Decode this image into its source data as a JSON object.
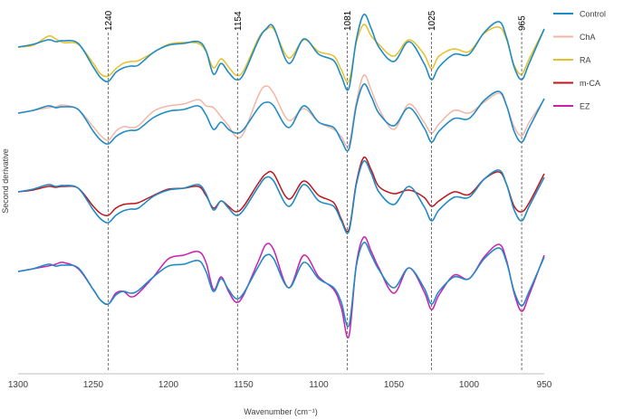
{
  "chart_data": {
    "type": "line",
    "title": "",
    "xlabel": "Wavenumber (cm⁻¹)",
    "ylabel": "Second derivative",
    "xlim": [
      1300,
      950
    ],
    "x_reversed": true,
    "x_ticks": [
      1300,
      1250,
      1200,
      1150,
      1100,
      1050,
      1000,
      950
    ],
    "y_ticks_shown": false,
    "grid": false,
    "legend_position": "right",
    "reference_lines": [
      {
        "x": 1240,
        "label": "1240"
      },
      {
        "x": 1154,
        "label": "1154"
      },
      {
        "x": 1081,
        "label": "1081"
      },
      {
        "x": 1025,
        "label": "1025"
      },
      {
        "x": 965,
        "label": "965"
      }
    ],
    "colors": {
      "Control": "#1f8bc6",
      "ChA": "#f2b6a6",
      "RA": "#e6c028",
      "m-CA": "#c0151b",
      "EZ": "#cc1fb0"
    },
    "series": [
      {
        "name": "Control"
      },
      {
        "name": "ChA"
      },
      {
        "name": "RA"
      },
      {
        "name": "m-CA"
      },
      {
        "name": "EZ"
      }
    ],
    "panels": [
      {
        "offset": 0,
        "traces": [
          {
            "series": "RA",
            "x": [
              1300,
              1290,
              1280,
              1275,
              1270,
              1260,
              1250,
              1245,
              1240,
              1235,
              1230,
              1225,
              1220,
              1210,
              1200,
              1190,
              1180,
              1175,
              1170,
              1165,
              1160,
              1155,
              1150,
              1140,
              1135,
              1130,
              1120,
              1110,
              1100,
              1090,
              1085,
              1080,
              1075,
              1070,
              1065,
              1060,
              1050,
              1040,
              1030,
              1025,
              1020,
              1010,
              1000,
              990,
              980,
              975,
              970,
              965,
              960,
              950
            ],
            "y": [
              0,
              0.2,
              1.2,
              0.9,
              0.5,
              0.3,
              -1.8,
              -3.0,
              -3.2,
              -2.4,
              -1.8,
              -1.6,
              -1.5,
              -0.6,
              0.3,
              0.5,
              0.4,
              -0.5,
              -2.3,
              -1.3,
              -2.2,
              -3.1,
              -2.6,
              1.0,
              1.9,
              2.0,
              -1.2,
              0.8,
              -0.5,
              -1.0,
              -2.5,
              -3.8,
              0.5,
              2.5,
              1.2,
              0.3,
              -1.0,
              0.8,
              -0.8,
              -2.4,
              -1.0,
              -0.2,
              -0.5,
              1.5,
              2.2,
              0.8,
              -2.0,
              -3.0,
              -1.3,
              2.0
            ]
          },
          {
            "series": "Control",
            "x": [
              1300,
              1290,
              1280,
              1275,
              1270,
              1260,
              1250,
              1245,
              1240,
              1235,
              1230,
              1225,
              1220,
              1210,
              1200,
              1190,
              1180,
              1175,
              1170,
              1165,
              1160,
              1155,
              1150,
              1140,
              1135,
              1130,
              1120,
              1110,
              1100,
              1090,
              1085,
              1080,
              1075,
              1070,
              1065,
              1060,
              1050,
              1040,
              1030,
              1025,
              1020,
              1010,
              1000,
              990,
              980,
              975,
              970,
              965,
              960,
              950
            ],
            "y": [
              0,
              0.3,
              0.8,
              0.6,
              0.7,
              0.4,
              -2.2,
              -3.4,
              -3.8,
              -2.8,
              -2.3,
              -2.1,
              -2.0,
              -0.6,
              0.2,
              0.4,
              0.6,
              -0.4,
              -3.0,
              -1.8,
              -2.8,
              -3.6,
              -3.0,
              0.8,
              2.0,
              2.2,
              -1.8,
              0.9,
              -0.8,
              -1.5,
              -3.2,
              -4.6,
              0.8,
              3.6,
              2.0,
              0.0,
              -1.6,
              0.6,
              -1.8,
              -3.6,
              -2.2,
              -0.8,
              -0.8,
              1.6,
              2.8,
              1.0,
              -2.2,
              -3.6,
              -1.8,
              2.0
            ]
          }
        ]
      },
      {
        "offset": 1,
        "traces": [
          {
            "series": "ChA",
            "x": [
              1300,
              1290,
              1280,
              1275,
              1270,
              1260,
              1250,
              1245,
              1240,
              1235,
              1230,
              1225,
              1220,
              1210,
              1200,
              1190,
              1180,
              1175,
              1170,
              1165,
              1160,
              1155,
              1150,
              1140,
              1135,
              1130,
              1120,
              1110,
              1100,
              1090,
              1085,
              1080,
              1075,
              1070,
              1065,
              1060,
              1050,
              1040,
              1030,
              1025,
              1020,
              1010,
              1000,
              990,
              980,
              975,
              970,
              965,
              960,
              950
            ],
            "y": [
              0,
              0.3,
              0.6,
              0.7,
              0.9,
              0.4,
              -1.5,
              -2.5,
              -3.0,
              -2.0,
              -1.5,
              -1.6,
              -1.4,
              0.2,
              0.8,
              1.0,
              1.5,
              0.8,
              0.6,
              -0.4,
              -1.4,
              -2.6,
              -2.2,
              2.0,
              3.0,
              2.2,
              -0.8,
              0.5,
              -1.0,
              -1.8,
              -2.6,
              -3.5,
              1.2,
              4.2,
              2.5,
              0.5,
              -1.8,
              1.0,
              -1.0,
              -2.2,
              -1.2,
              0.3,
              0.0,
              1.2,
              2.2,
              0.8,
              -1.5,
              -2.5,
              -1.0,
              1.5
            ]
          },
          {
            "series": "Control",
            "x": [
              1300,
              1290,
              1280,
              1275,
              1270,
              1260,
              1250,
              1245,
              1240,
              1235,
              1230,
              1225,
              1220,
              1210,
              1200,
              1190,
              1180,
              1175,
              1170,
              1165,
              1160,
              1155,
              1150,
              1140,
              1135,
              1130,
              1120,
              1110,
              1100,
              1090,
              1085,
              1080,
              1075,
              1070,
              1065,
              1060,
              1050,
              1040,
              1030,
              1025,
              1020,
              1010,
              1000,
              990,
              980,
              975,
              970,
              965,
              960,
              950
            ],
            "y": [
              0,
              0.3,
              0.8,
              0.6,
              0.7,
              0.4,
              -2.0,
              -3.0,
              -3.4,
              -2.6,
              -2.1,
              -1.9,
              -1.8,
              -0.5,
              0.2,
              0.4,
              0.8,
              -0.2,
              -1.8,
              -1.0,
              -1.8,
              -2.2,
              -1.8,
              0.6,
              1.2,
              0.8,
              -1.6,
              0.8,
              -1.0,
              -1.6,
              -3.0,
              -4.0,
              0.8,
              3.2,
              1.8,
              0.0,
              -1.4,
              0.6,
              -1.6,
              -3.2,
              -2.0,
              -0.6,
              -0.6,
              1.4,
              2.4,
              0.8,
              -2.0,
              -3.2,
              -1.6,
              1.6
            ]
          }
        ]
      },
      {
        "offset": 2,
        "traces": [
          {
            "series": "m-CA",
            "x": [
              1300,
              1290,
              1280,
              1275,
              1270,
              1260,
              1250,
              1245,
              1240,
              1235,
              1230,
              1225,
              1220,
              1210,
              1200,
              1190,
              1180,
              1175,
              1170,
              1165,
              1160,
              1155,
              1150,
              1140,
              1135,
              1130,
              1120,
              1110,
              1100,
              1090,
              1085,
              1080,
              1075,
              1070,
              1065,
              1060,
              1050,
              1040,
              1030,
              1025,
              1020,
              1010,
              1000,
              990,
              980,
              975,
              970,
              965,
              960,
              950
            ],
            "y": [
              0,
              0.2,
              0.6,
              0.5,
              0.6,
              0.4,
              -1.6,
              -2.4,
              -2.6,
              -1.8,
              -1.4,
              -1.3,
              -1.2,
              -0.4,
              0.3,
              0.4,
              0.6,
              -0.4,
              -1.8,
              -1.0,
              -1.6,
              -2.2,
              -1.6,
              1.0,
              2.0,
              2.0,
              -0.8,
              1.2,
              -0.4,
              -1.2,
              -3.0,
              -4.2,
              1.0,
              3.8,
              2.4,
              0.6,
              -0.2,
              0.2,
              -0.6,
              -1.6,
              -1.0,
              0.0,
              -0.3,
              1.4,
              2.2,
              0.8,
              -1.6,
              -2.2,
              -1.2,
              2.0
            ]
          },
          {
            "series": "Control",
            "x": [
              1300,
              1290,
              1280,
              1275,
              1270,
              1260,
              1250,
              1245,
              1240,
              1235,
              1230,
              1225,
              1220,
              1210,
              1200,
              1190,
              1180,
              1175,
              1170,
              1165,
              1160,
              1155,
              1150,
              1140,
              1135,
              1130,
              1120,
              1110,
              1100,
              1090,
              1085,
              1080,
              1075,
              1070,
              1065,
              1060,
              1050,
              1040,
              1030,
              1025,
              1020,
              1010,
              1000,
              990,
              980,
              975,
              970,
              965,
              960,
              950
            ],
            "y": [
              0,
              0.3,
              0.8,
              0.6,
              0.7,
              0.4,
              -2.0,
              -3.0,
              -3.4,
              -2.6,
              -2.1,
              -1.9,
              -1.8,
              -0.5,
              0.2,
              0.4,
              0.8,
              -0.2,
              -2.0,
              -1.0,
              -1.8,
              -2.6,
              -2.0,
              0.6,
              1.6,
              1.2,
              -1.6,
              0.8,
              -1.0,
              -1.6,
              -3.2,
              -4.4,
              0.8,
              3.4,
              2.0,
              0.0,
              -1.4,
              0.6,
              -1.6,
              -3.2,
              -2.0,
              -0.6,
              -0.6,
              1.4,
              2.4,
              0.8,
              -2.0,
              -3.2,
              -1.6,
              1.6
            ]
          }
        ]
      },
      {
        "offset": 3,
        "traces": [
          {
            "series": "EZ",
            "x": [
              1300,
              1290,
              1280,
              1275,
              1270,
              1260,
              1250,
              1245,
              1240,
              1235,
              1230,
              1225,
              1220,
              1210,
              1200,
              1190,
              1180,
              1175,
              1170,
              1165,
              1160,
              1155,
              1150,
              1140,
              1135,
              1130,
              1120,
              1110,
              1100,
              1090,
              1085,
              1080,
              1075,
              1070,
              1065,
              1060,
              1050,
              1040,
              1030,
              1025,
              1020,
              1010,
              1000,
              990,
              980,
              975,
              970,
              965,
              960,
              950
            ],
            "y": [
              0,
              0.3,
              0.6,
              0.8,
              1.0,
              0.3,
              -2.0,
              -3.2,
              -3.6,
              -2.4,
              -2.2,
              -2.8,
              -2.4,
              -0.6,
              1.4,
              1.8,
              2.2,
              1.0,
              -2.0,
              -0.6,
              -2.2,
              -3.4,
              -2.6,
              1.2,
              3.0,
              2.4,
              -1.8,
              1.8,
              -0.6,
              -2.0,
              -4.0,
              -7.2,
              0.8,
              3.8,
              2.2,
              0.4,
              -2.4,
              0.4,
              -2.2,
              -4.2,
              -2.6,
              -0.4,
              -0.8,
              1.6,
              3.0,
              1.2,
              -2.4,
              -4.4,
              -2.6,
              1.8
            ]
          },
          {
            "series": "Control",
            "x": [
              1300,
              1290,
              1280,
              1275,
              1270,
              1260,
              1250,
              1245,
              1240,
              1235,
              1230,
              1225,
              1220,
              1210,
              1200,
              1190,
              1180,
              1175,
              1170,
              1165,
              1160,
              1155,
              1150,
              1140,
              1135,
              1130,
              1120,
              1110,
              1100,
              1090,
              1085,
              1080,
              1075,
              1070,
              1065,
              1060,
              1050,
              1040,
              1030,
              1025,
              1020,
              1010,
              1000,
              990,
              980,
              975,
              970,
              965,
              960,
              950
            ],
            "y": [
              0,
              0.3,
              0.8,
              0.6,
              0.7,
              0.4,
              -2.0,
              -3.2,
              -3.6,
              -2.6,
              -2.2,
              -2.4,
              -2.1,
              -0.6,
              0.6,
              0.8,
              1.2,
              0.0,
              -2.2,
              -0.8,
              -2.0,
              -3.0,
              -2.4,
              0.6,
              1.8,
              1.4,
              -1.8,
              1.0,
              -0.8,
              -1.8,
              -3.4,
              -6.0,
              0.6,
              3.2,
              1.8,
              0.2,
              -1.8,
              0.4,
              -1.8,
              -3.6,
              -2.2,
              -0.6,
              -0.8,
              1.4,
              2.6,
              1.0,
              -2.2,
              -3.8,
              -2.2,
              1.6
            ]
          }
        ]
      }
    ]
  }
}
